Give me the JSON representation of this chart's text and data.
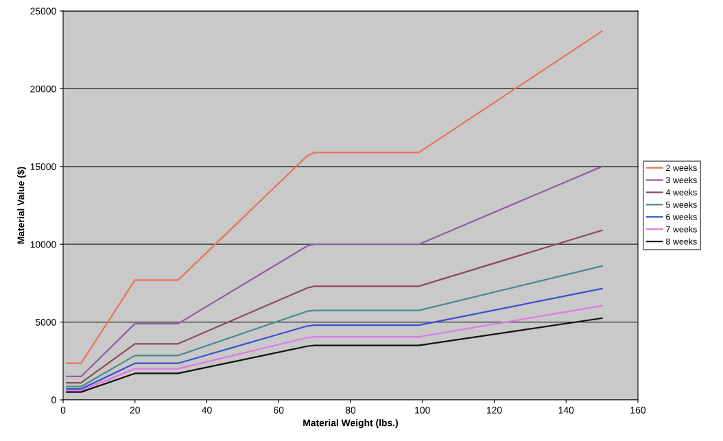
{
  "chart_data": {
    "type": "line",
    "xlabel": "Material Weight (lbs.)",
    "ylabel": "Material Value ($)",
    "x": [
      1,
      5,
      20,
      32,
      68,
      70,
      99,
      150
    ],
    "series": [
      {
        "name": "2 weeks",
        "color": "#e8735a",
        "values": [
          2350,
          2350,
          7700,
          7700,
          15700,
          15900,
          15900,
          23700
        ]
      },
      {
        "name": "3 weeks",
        "color": "#8e5ea2",
        "values": [
          1500,
          1500,
          4900,
          4900,
          9900,
          10000,
          10000,
          15000
        ]
      },
      {
        "name": "4 weeks",
        "color": "#8b4a5c",
        "values": [
          1100,
          1100,
          3600,
          3600,
          7200,
          7300,
          7300,
          10900
        ]
      },
      {
        "name": "5 weeks",
        "color": "#4a8a8a",
        "values": [
          850,
          850,
          2850,
          2850,
          5700,
          5750,
          5750,
          8600
        ]
      },
      {
        "name": "6 weeks",
        "color": "#3b4fd0",
        "values": [
          700,
          700,
          2350,
          2350,
          4750,
          4800,
          4800,
          7150
        ]
      },
      {
        "name": "7 weeks",
        "color": "#e07ae0",
        "values": [
          600,
          600,
          2000,
          2000,
          4000,
          4050,
          4050,
          6050
        ]
      },
      {
        "name": "8 weeks",
        "color": "#111111",
        "values": [
          500,
          500,
          1700,
          1700,
          3450,
          3500,
          3500,
          5250
        ]
      }
    ],
    "xlim": [
      0,
      160
    ],
    "xticks": [
      0,
      20,
      40,
      60,
      80,
      100,
      120,
      140,
      160
    ],
    "ylim": [
      0,
      25000
    ],
    "yticks": [
      0,
      5000,
      10000,
      15000,
      20000,
      25000
    ],
    "grid": "y",
    "legend": "right",
    "marker": "none",
    "line_style": "solid"
  }
}
